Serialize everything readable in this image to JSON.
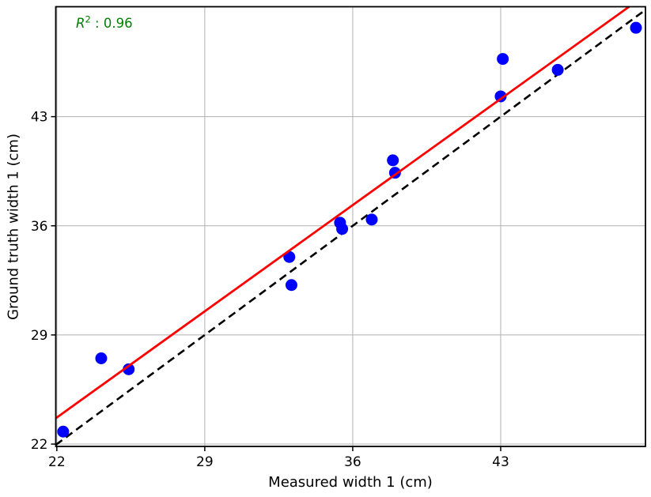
{
  "figure": {
    "background": "#ffffff"
  },
  "chart_data": {
    "type": "scatter",
    "title": "",
    "xlabel": "Measured width 1 (cm)",
    "ylabel": "Ground truth width 1 (cm)",
    "xlim": [
      21.95,
      49.85
    ],
    "ylim": [
      21.85,
      50.05
    ],
    "xticks": [
      22,
      29,
      36,
      43
    ],
    "yticks": [
      22,
      29,
      36,
      43
    ],
    "grid": true,
    "grid_color": "#b0b0b0",
    "spine_color": "#000000",
    "point_color": "#0000ff",
    "point_radius": 7.5,
    "points": [
      [
        22.3,
        22.8
      ],
      [
        24.1,
        27.5
      ],
      [
        25.4,
        26.8
      ],
      [
        33.0,
        34.0
      ],
      [
        33.1,
        32.2
      ],
      [
        35.4,
        36.2
      ],
      [
        35.5,
        35.8
      ],
      [
        36.9,
        36.4
      ],
      [
        37.9,
        40.2
      ],
      [
        38.0,
        39.4
      ],
      [
        43.0,
        44.3
      ],
      [
        43.1,
        46.7
      ],
      [
        45.7,
        46.0
      ],
      [
        49.4,
        48.7
      ]
    ],
    "fit_line": {
      "slope": 0.973,
      "intercept": 2.3,
      "color": "#ff0000",
      "width": 2.8
    },
    "identity_line": {
      "color": "#000000",
      "dash": [
        10,
        6
      ],
      "width": 2.6
    },
    "annotation": {
      "variable": "R",
      "exponent": "2",
      "value_text": " : 0.96",
      "color": "#008000"
    }
  }
}
